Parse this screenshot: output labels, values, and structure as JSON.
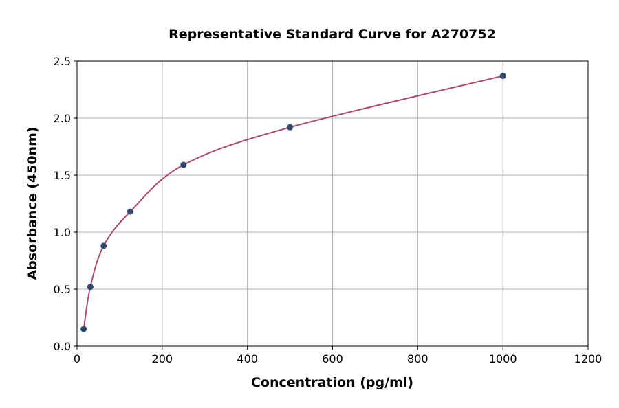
{
  "chart_data": {
    "type": "scatter",
    "title": "Representative Standard Curve for A270752",
    "xlabel": "Concentration (pg/ml)",
    "ylabel": "Absorbance (450nm)",
    "xlim": [
      0,
      1200
    ],
    "ylim": [
      0,
      2.5
    ],
    "xticks": [
      0,
      200,
      400,
      600,
      800,
      1000,
      1200
    ],
    "yticks": [
      0.0,
      0.5,
      1.0,
      1.5,
      2.0,
      2.5
    ],
    "xtick_labels": [
      "0",
      "200",
      "400",
      "600",
      "800",
      "1000",
      "1200"
    ],
    "ytick_labels": [
      "0.0",
      "0.5",
      "1.0",
      "1.5",
      "2.0",
      "2.5"
    ],
    "grid": true,
    "points": {
      "x": [
        15.6,
        31.25,
        62.5,
        125,
        250,
        500,
        1000
      ],
      "y": [
        0.15,
        0.52,
        0.88,
        1.18,
        1.59,
        1.92,
        2.37
      ]
    },
    "curve": "fitted standard curve",
    "colors": {
      "points": "#2e4a6e",
      "curve": "#b0496e",
      "grid": "#b0b0b0"
    }
  }
}
